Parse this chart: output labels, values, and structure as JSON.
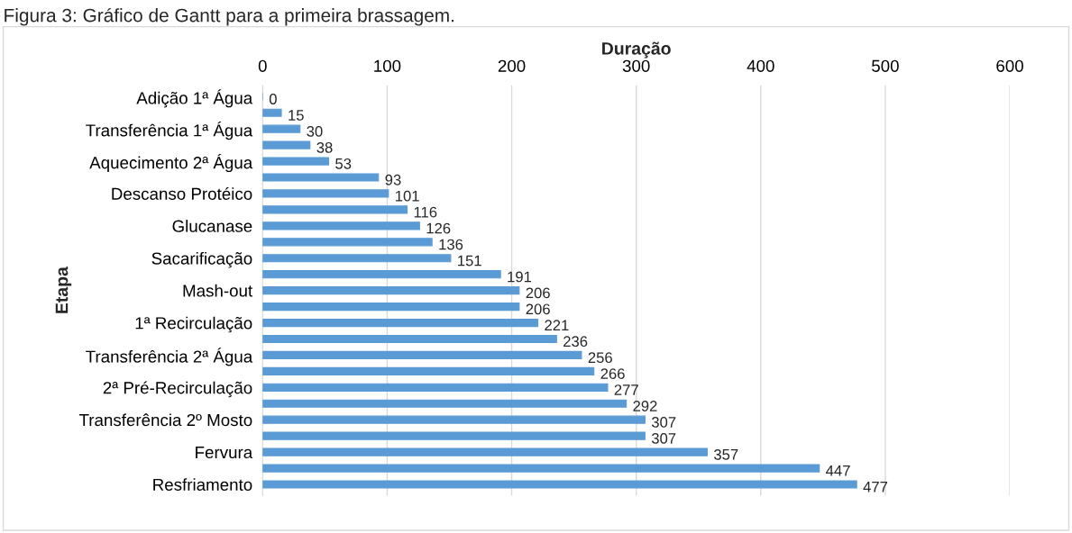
{
  "chart_data": {
    "type": "bar",
    "orientation": "horizontal",
    "title": "Figura 3: Gráfico de Gantt para a primeira brassagem.",
    "xlabel": "Duração",
    "ylabel": "Etapa",
    "categories": [
      "Adição 1ª Água",
      null,
      "Transferência 1ª Água",
      null,
      "Aquecimento 2ª Água",
      null,
      "Descanso Protéico",
      null,
      "Glucanase",
      null,
      "Sacarificação",
      null,
      "Mash-out",
      null,
      "1ª Recirculação",
      null,
      "Transferência 2ª Água",
      null,
      "2ª Pré-Recirculação",
      null,
      "Transferência 2º Mosto",
      null,
      "Fervura",
      null,
      "Resfriamento"
    ],
    "values": [
      0,
      15,
      30,
      38,
      53,
      93,
      101,
      116,
      126,
      136,
      151,
      191,
      206,
      206,
      221,
      236,
      256,
      266,
      277,
      292,
      307,
      307,
      357,
      447,
      477
    ],
    "color": "#5b9bd5",
    "xlim": [
      0,
      600
    ],
    "xticks": [
      0,
      100,
      200,
      300,
      400,
      500,
      600
    ],
    "grid": "x",
    "data_labels": true,
    "legend": false
  }
}
